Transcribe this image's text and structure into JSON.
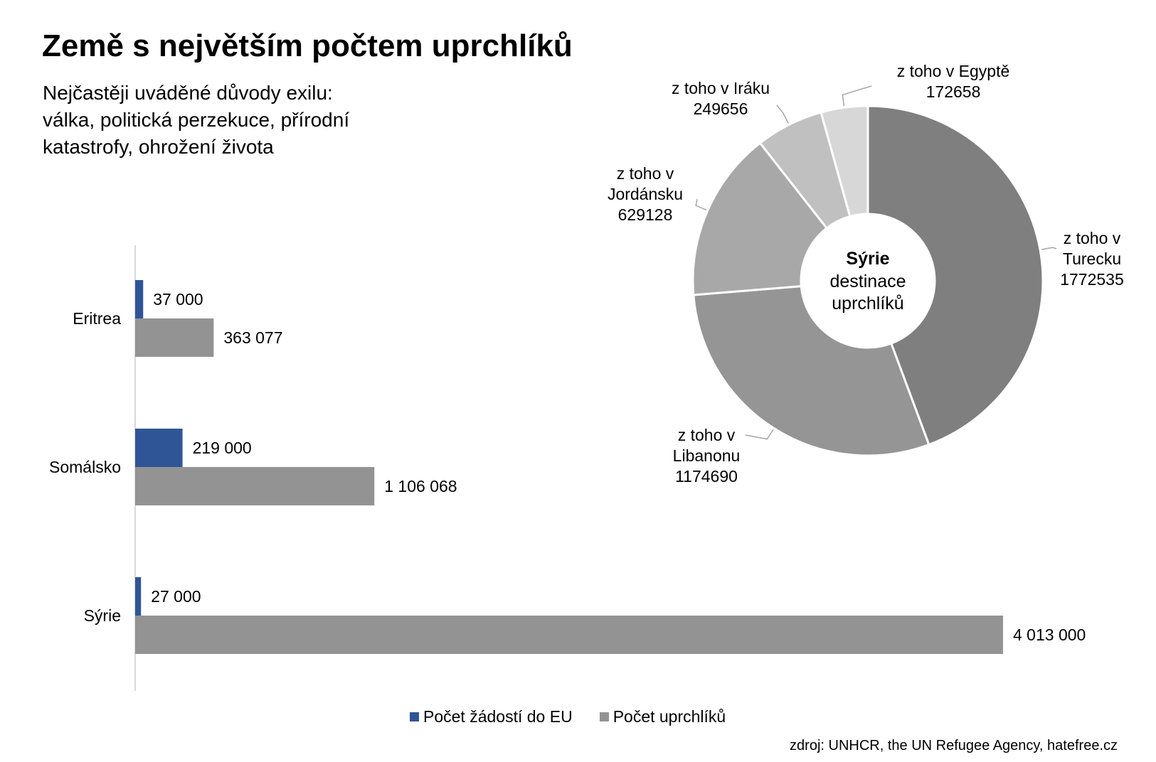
{
  "title": "Země s největším počtem uprchlíků",
  "subtitle_lines": [
    "Nejčastěji uváděné důvody exilu:",
    "válka, politická perzekuce, přírodní",
    "katastrofy, ohrožení života"
  ],
  "source": "zdroj: UNHCR, the UN Refugee Agency, hatefree.cz",
  "chart_data": [
    {
      "type": "bar",
      "orientation": "horizontal",
      "categories": [
        "Eritrea",
        "Somálsko",
        "Sýrie"
      ],
      "series": [
        {
          "name": "Počet žádostí do EU",
          "values": [
            37000,
            219000,
            27000
          ],
          "labels": [
            "37 000",
            "219 000",
            "27 000"
          ],
          "color": "#2f5597"
        },
        {
          "name": "Počet uprchlíků",
          "values": [
            363077,
            1106068,
            4013000
          ],
          "labels": [
            "363 077",
            "1 106 068",
            "4 013 000"
          ],
          "color": "#939393"
        }
      ],
      "legend": "bottom",
      "grid": false
    },
    {
      "type": "pie",
      "variant": "donut",
      "center_label": {
        "bold": "Sýrie",
        "lines": [
          "destinace",
          "uprchlíků"
        ]
      },
      "slices": [
        {
          "label_lines": [
            "z toho v",
            "Turecku",
            "1772535"
          ],
          "value": 1772535,
          "color": "#7f7f7f"
        },
        {
          "label_lines": [
            "z toho v",
            "Libanonu",
            "1174690"
          ],
          "value": 1174690,
          "color": "#959595"
        },
        {
          "label_lines": [
            "z toho v",
            "Jordánsku",
            "629128"
          ],
          "value": 629128,
          "color": "#a8a8a8"
        },
        {
          "label_lines": [
            "z toho v Iráku",
            "249656"
          ],
          "value": 249656,
          "color": "#c0c0c0"
        },
        {
          "label_lines": [
            "z toho v Egyptě",
            "172658"
          ],
          "value": 172658,
          "color": "#d7d7d7"
        }
      ]
    }
  ]
}
